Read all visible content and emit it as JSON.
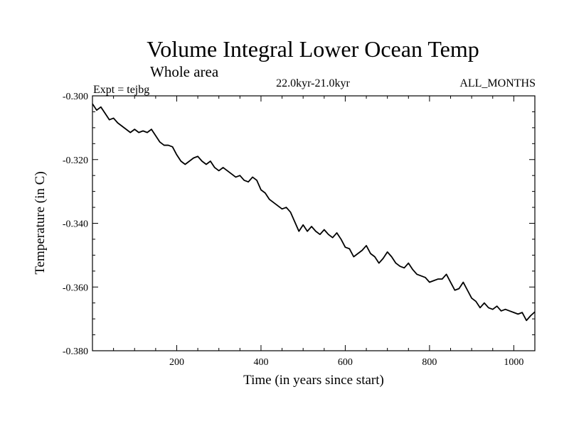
{
  "chart_data": {
    "type": "line",
    "title": "Volume Integral Lower Ocean Temp",
    "subtitle": "Whole area",
    "experiment": "Expt = tejbg",
    "period": "22.0kyr-21.0kyr",
    "months": "ALL_MONTHS",
    "xlabel": "Time (in years since start)",
    "ylabel": "Temperature (in C)",
    "xlim": [
      0,
      1050
    ],
    "ylim": [
      -0.38,
      -0.3
    ],
    "xticks": [
      200,
      400,
      600,
      800,
      1000
    ],
    "xtick_labels": [
      "200",
      "400",
      "600",
      "800",
      "1000"
    ],
    "yticks": [
      -0.3,
      -0.32,
      -0.34,
      -0.36,
      -0.38
    ],
    "ytick_labels": [
      "-0.300",
      "-0.320",
      "-0.340",
      "-0.360",
      "-0.380"
    ],
    "line_color": "#000000",
    "series": [
      {
        "name": "Volume integral lower ocean temperature",
        "x": [
          0,
          10,
          20,
          30,
          40,
          50,
          60,
          70,
          80,
          90,
          100,
          110,
          120,
          130,
          140,
          150,
          160,
          170,
          180,
          190,
          200,
          210,
          220,
          230,
          240,
          250,
          260,
          270,
          280,
          290,
          300,
          310,
          320,
          330,
          340,
          350,
          360,
          370,
          380,
          390,
          400,
          410,
          420,
          430,
          440,
          450,
          460,
          470,
          480,
          490,
          500,
          510,
          520,
          530,
          540,
          550,
          560,
          570,
          580,
          590,
          600,
          610,
          620,
          630,
          640,
          650,
          660,
          670,
          680,
          690,
          700,
          710,
          720,
          730,
          740,
          750,
          760,
          770,
          780,
          790,
          800,
          810,
          820,
          830,
          840,
          850,
          860,
          870,
          880,
          890,
          900,
          910,
          920,
          930,
          940,
          950,
          960,
          970,
          980,
          990,
          1000,
          1010,
          1020,
          1030,
          1040,
          1050
        ],
        "values": [
          -0.3025,
          -0.3045,
          -0.3035,
          -0.3055,
          -0.3075,
          -0.307,
          -0.3085,
          -0.3095,
          -0.3105,
          -0.3115,
          -0.3105,
          -0.3115,
          -0.311,
          -0.3115,
          -0.3105,
          -0.3125,
          -0.3145,
          -0.3155,
          -0.3155,
          -0.316,
          -0.3185,
          -0.3205,
          -0.3215,
          -0.3205,
          -0.3195,
          -0.319,
          -0.3205,
          -0.3215,
          -0.3205,
          -0.3225,
          -0.3235,
          -0.3225,
          -0.3235,
          -0.3245,
          -0.3255,
          -0.325,
          -0.3265,
          -0.327,
          -0.3255,
          -0.3265,
          -0.3295,
          -0.3305,
          -0.3325,
          -0.3335,
          -0.3345,
          -0.3355,
          -0.335,
          -0.3365,
          -0.3395,
          -0.3425,
          -0.3405,
          -0.3425,
          -0.341,
          -0.3425,
          -0.3435,
          -0.342,
          -0.3435,
          -0.3445,
          -0.343,
          -0.345,
          -0.3475,
          -0.348,
          -0.3505,
          -0.3495,
          -0.3485,
          -0.347,
          -0.3495,
          -0.3505,
          -0.3525,
          -0.351,
          -0.349,
          -0.3505,
          -0.3525,
          -0.3535,
          -0.354,
          -0.3525,
          -0.3545,
          -0.356,
          -0.3565,
          -0.357,
          -0.3585,
          -0.358,
          -0.3575,
          -0.3575,
          -0.356,
          -0.3585,
          -0.361,
          -0.3605,
          -0.3585,
          -0.361,
          -0.3635,
          -0.3645,
          -0.3665,
          -0.365,
          -0.3665,
          -0.367,
          -0.366,
          -0.3675,
          -0.367,
          -0.3675,
          -0.368,
          -0.3685,
          -0.368,
          -0.3705,
          -0.369,
          -0.3678
        ]
      }
    ]
  }
}
